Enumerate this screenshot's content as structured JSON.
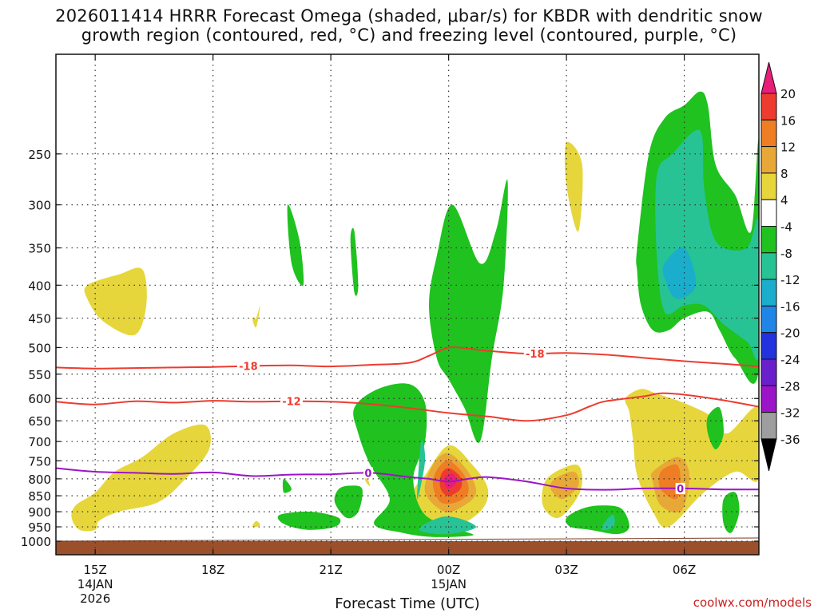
{
  "chart_data": {
    "type": "contour",
    "title_line1": "2026011414 HRRR Forecast Omega (shaded, μbar/s) for KBDR with dendritic snow",
    "title_line2": "growth region (contoured, red, °C) and freezing level (contoured, purple, °C)",
    "xlabel": "Forecast Time (UTC)",
    "ylabel": "",
    "credit": "coolwx.com/models",
    "x_ticks": [
      {
        "hour": 15,
        "label": "15Z",
        "sub1": "14JAN",
        "sub2": "2026"
      },
      {
        "hour": 18,
        "label": "18Z",
        "sub1": "",
        "sub2": ""
      },
      {
        "hour": 21,
        "label": "21Z",
        "sub1": "",
        "sub2": ""
      },
      {
        "hour": 24,
        "label": "00Z",
        "sub1": "15JAN",
        "sub2": ""
      },
      {
        "hour": 27,
        "label": "03Z",
        "sub1": "",
        "sub2": ""
      },
      {
        "hour": 30,
        "label": "06Z",
        "sub1": "",
        "sub2": ""
      }
    ],
    "xlim": [
      14.0,
      31.9
    ],
    "y_levels": [
      250,
      300,
      350,
      400,
      450,
      500,
      550,
      600,
      650,
      700,
      750,
      800,
      850,
      900,
      950,
      1000
    ],
    "ylim_hpa": [
      1000,
      175
    ],
    "colorbar": {
      "labels": [
        "20",
        "16",
        "12",
        "8",
        "4",
        "-4",
        "-8",
        "-12",
        "-16",
        "-20",
        "-24",
        "-28",
        "-32",
        "-36"
      ],
      "colors": [
        "#e81e79",
        "#ee3b2f",
        "#ef7d23",
        "#e8a838",
        "#e6d63c",
        "#ffffff",
        "#1fc21f",
        "#27c394",
        "#1aaecc",
        "#1f86e8",
        "#2233dd",
        "#6a1fcc",
        "#9b14c8",
        "#9e9e9e",
        "#000000"
      ]
    },
    "shading_colors": {
      "w4": "#e6d63c",
      "w8": "#e8a838",
      "w12": "#ef7d23",
      "w16": "#ee3b2f",
      "w20": "#e81e79",
      "c4": "#1fc21f",
      "c8": "#27c394",
      "c12": "#1aaecc",
      "ground": "#9b4f2b"
    },
    "isotherms": [
      {
        "name": "-18",
        "label": "-18",
        "color": "#ee3b2f",
        "x": [
          14.0,
          15.0,
          16.0,
          17.0,
          18.0,
          19.0,
          20.0,
          21.0,
          22.0,
          23.0,
          23.5,
          24.0,
          24.5,
          25.0,
          26.0,
          27.0,
          28.0,
          29.0,
          30.0,
          31.0,
          31.9
        ],
        "p": [
          537,
          539,
          538,
          537,
          536,
          534,
          533,
          535,
          532,
          528,
          515,
          500,
          502,
          506,
          511,
          510,
          513,
          519,
          525,
          530,
          535
        ]
      },
      {
        "name": "-12",
        "label": "-12",
        "color": "#ee3b2f",
        "x": [
          14.0,
          15.0,
          16.0,
          17.0,
          18.0,
          19.0,
          20.0,
          21.0,
          22.0,
          23.0,
          24.0,
          25.0,
          26.0,
          27.0,
          27.6,
          28.0,
          29.0,
          29.4,
          30.0,
          31.0,
          31.9
        ],
        "p": [
          607,
          613,
          606,
          609,
          605,
          607,
          606,
          607,
          612,
          621,
          632,
          640,
          650,
          637,
          617,
          606,
          595,
          589,
          592,
          604,
          618
        ]
      },
      {
        "name": "0",
        "label": "0",
        "color": "#9b14c8",
        "x": [
          14.0,
          15.0,
          16.0,
          17.0,
          18.0,
          19.0,
          20.0,
          21.0,
          22.0,
          23.0,
          23.5,
          24.0,
          24.5,
          25.0,
          26.0,
          27.0,
          28.0,
          29.0,
          30.0,
          31.0,
          31.9
        ],
        "p": [
          770,
          780,
          783,
          786,
          782,
          792,
          788,
          787,
          783,
          795,
          800,
          808,
          800,
          795,
          808,
          828,
          832,
          828,
          828,
          831,
          831
        ]
      }
    ],
    "isotherm_labels": [
      {
        "text": "-18",
        "x": 18.9,
        "p": 534,
        "color": "#ee3b2f"
      },
      {
        "text": "-18",
        "x": 26.2,
        "p": 511,
        "color": "#ee3b2f"
      },
      {
        "text": "-12",
        "x": 20.0,
        "p": 606,
        "color": "#ee3b2f"
      },
      {
        "text": "0",
        "x": 21.95,
        "p": 783,
        "color": "#9b14c8"
      },
      {
        "text": "0",
        "x": 29.9,
        "p": 828,
        "color": "#9b14c8"
      }
    ],
    "shaded_regions": [
      {
        "level": "w4",
        "x": [
          14.8,
          15.6,
          16.2,
          16.3,
          16.0,
          15.2,
          14.8
        ],
        "p": [
          400,
          385,
          378,
          430,
          478,
          455,
          420
        ]
      },
      {
        "level": "w4",
        "x": [
          19.1,
          19.2,
          19.1,
          19.0
        ],
        "p": [
          450,
          430,
          465,
          450
        ]
      },
      {
        "level": "w4",
        "x": [
          14.5,
          15.0,
          15.5,
          16.2,
          17.0,
          17.8,
          17.9,
          17.3,
          16.6,
          15.6,
          15.1,
          15.0,
          14.6,
          14.4
        ],
        "p": [
          880,
          840,
          780,
          740,
          680,
          660,
          720,
          800,
          870,
          900,
          930,
          960,
          960,
          920
        ]
      },
      {
        "level": "w4",
        "x": [
          19.1,
          19.2,
          19.0
        ],
        "p": [
          930,
          945,
          950
        ]
      },
      {
        "level": "w4",
        "x": [
          21.8,
          21.9,
          22.0,
          21.9
        ],
        "p": [
          780,
          790,
          820,
          810
        ]
      },
      {
        "level": "w4",
        "x": [
          27.0,
          27.4,
          27.3,
          27.0
        ],
        "p": [
          240,
          260,
          330,
          280
        ]
      },
      {
        "level": "w4",
        "x": [
          23.4,
          24.0,
          24.6,
          25.0,
          24.8,
          24.0,
          23.3,
          23.1
        ],
        "p": [
          790,
          710,
          760,
          830,
          900,
          955,
          910,
          840
        ]
      },
      {
        "level": "w4",
        "x": [
          26.5,
          27.2,
          27.4,
          27.3,
          26.8,
          26.4
        ],
        "p": [
          800,
          760,
          790,
          850,
          920,
          880
        ]
      },
      {
        "level": "w4",
        "x": [
          28.5,
          28.9,
          29.3,
          30.0,
          30.7,
          31.1,
          31.9,
          31.9,
          31.3,
          30.5,
          29.6,
          29.2,
          28.8,
          28.7,
          28.6
        ],
        "p": [
          600,
          580,
          590,
          610,
          640,
          680,
          620,
          800,
          780,
          840,
          950,
          900,
          790,
          700,
          630
        ]
      },
      {
        "level": "w8",
        "x": [
          23.6,
          24.0,
          24.5,
          24.7,
          24.4,
          23.9,
          23.4
        ],
        "p": [
          760,
          730,
          780,
          840,
          880,
          900,
          840
        ]
      },
      {
        "level": "w8",
        "x": [
          26.7,
          27.2,
          27.3,
          26.9,
          26.6
        ],
        "p": [
          800,
          780,
          820,
          860,
          830
        ]
      },
      {
        "level": "w8",
        "x": [
          29.2,
          29.8,
          30.1,
          30.1,
          29.9,
          29.4,
          29.2
        ],
        "p": [
          780,
          740,
          770,
          830,
          900,
          880,
          810
        ]
      },
      {
        "level": "w12",
        "x": [
          23.7,
          24.0,
          24.4,
          24.5,
          24.2,
          23.8,
          23.6
        ],
        "p": [
          775,
          750,
          790,
          840,
          870,
          870,
          820
        ]
      },
      {
        "level": "w12",
        "x": [
          29.4,
          29.8,
          29.9,
          29.8,
          29.4
        ],
        "p": [
          780,
          760,
          800,
          860,
          830
        ]
      },
      {
        "level": "w16",
        "x": [
          23.8,
          24.0,
          24.3,
          24.3,
          24.0,
          23.8
        ],
        "p": [
          790,
          770,
          795,
          830,
          850,
          830
        ]
      },
      {
        "level": "w20",
        "x": [
          23.9,
          24.1,
          24.2,
          24.0,
          23.9
        ],
        "p": [
          795,
          785,
          810,
          830,
          815
        ]
      },
      {
        "level": "c4",
        "x": [
          19.9,
          20.2,
          20.3,
          20.0
        ],
        "p": [
          300,
          340,
          400,
          370
        ]
      },
      {
        "level": "c4",
        "x": [
          21.5,
          21.6,
          21.7,
          21.6
        ],
        "p": [
          340,
          330,
          400,
          410
        ]
      },
      {
        "level": "c4",
        "x": [
          23.7,
          24.1,
          24.8,
          25.2,
          25.5,
          25.4,
          25.1,
          24.8,
          24.4,
          24.0,
          23.7,
          23.5
        ],
        "p": [
          360,
          300,
          370,
          330,
          275,
          400,
          520,
          700,
          620,
          560,
          520,
          430
        ]
      },
      {
        "level": "c4",
        "x": [
          19.8,
          20.0,
          19.8
        ],
        "p": [
          800,
          830,
          840
        ]
      },
      {
        "level": "c4",
        "x": [
          21.2,
          21.5,
          21.8,
          21.7,
          21.4,
          21.1
        ],
        "p": [
          830,
          820,
          830,
          900,
          920,
          870
        ]
      },
      {
        "level": "c4",
        "x": [
          19.7,
          20.5,
          21.2,
          21.1,
          20.4,
          19.8
        ],
        "p": [
          910,
          900,
          920,
          950,
          960,
          940
        ]
      },
      {
        "level": "c4",
        "x": [
          21.6,
          22.2,
          23.0,
          23.4,
          23.4,
          23.1,
          23.4,
          24.3,
          24.6,
          23.6,
          22.8,
          22.1,
          22.5,
          22.0,
          21.7
        ],
        "p": [
          620,
          580,
          570,
          610,
          700,
          800,
          910,
          960,
          980,
          985,
          970,
          940,
          860,
          760,
          680
        ]
      },
      {
        "level": "c4",
        "x": [
          27.0,
          27.4,
          27.9,
          28.4,
          28.6,
          28.3,
          27.6,
          27.1
        ],
        "p": [
          920,
          890,
          880,
          890,
          950,
          975,
          960,
          950
        ]
      },
      {
        "level": "c4",
        "x": [
          30.6,
          30.9,
          31.0,
          30.8,
          30.6
        ],
        "p": [
          640,
          620,
          680,
          720,
          680
        ]
      },
      {
        "level": "c4",
        "x": [
          31.0,
          31.3,
          31.4,
          31.2,
          31.0
        ],
        "p": [
          860,
          840,
          900,
          970,
          940
        ]
      },
      {
        "level": "c4",
        "x": [
          28.8,
          29.1,
          29.5,
          30.0,
          30.4,
          30.6,
          30.8,
          31.3,
          31.7,
          31.9,
          31.9,
          31.3,
          30.9,
          30.6,
          30.0,
          29.6,
          29.2,
          28.9,
          28.8
        ],
        "p": [
          350,
          250,
          220,
          210,
          200,
          210,
          260,
          290,
          330,
          240,
          540,
          520,
          470,
          440,
          450,
          470,
          470,
          430,
          380
        ]
      },
      {
        "level": "c8",
        "x": [
          29.3,
          29.7,
          30.4,
          30.5,
          30.7,
          31.0,
          31.6,
          31.9,
          31.9,
          31.6,
          31.0,
          30.5,
          30.0,
          29.5,
          29.3
        ],
        "p": [
          270,
          250,
          230,
          280,
          330,
          350,
          350,
          320,
          510,
          490,
          460,
          430,
          430,
          440,
          360
        ]
      },
      {
        "level": "c8",
        "x": [
          23.3,
          23.4,
          23.2
        ],
        "p": [
          700,
          750,
          860
        ]
      },
      {
        "level": "c8",
        "x": [
          23.4,
          24.0,
          24.7,
          24.0,
          23.3
        ],
        "p": [
          940,
          915,
          950,
          975,
          965
        ]
      },
      {
        "level": "c8",
        "x": [
          28.0,
          28.2,
          28.2,
          27.9
        ],
        "p": [
          930,
          910,
          950,
          960
        ]
      },
      {
        "level": "c12",
        "x": [
          29.5,
          30.0,
          30.3,
          29.8,
          29.5
        ],
        "p": [
          370,
          350,
          400,
          420,
          390
        ]
      }
    ]
  }
}
